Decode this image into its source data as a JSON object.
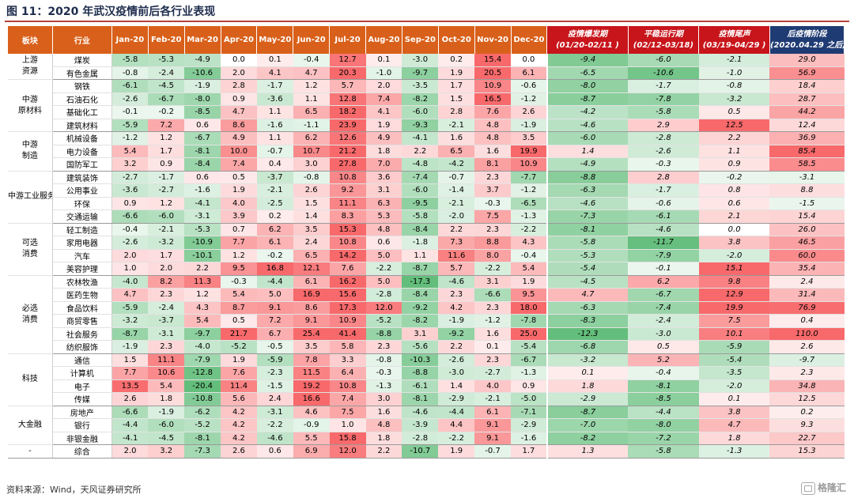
{
  "title": "图 11：2020 年武汉疫情前后各行业表现",
  "footer": "资料来源：Wind，天风证券研究所",
  "logo_text": "格隆汇",
  "colors": {
    "header": "#d9601a",
    "phase": "#c7151b",
    "phase_last": "#1f3b73",
    "neg": "#4caf50",
    "pos": "#e8484a"
  },
  "header": {
    "sector": "板块",
    "industry": "行业",
    "months": [
      "Jan-20",
      "Feb-20",
      "Mar-20",
      "Apr-20",
      "May-20",
      "Jun-20",
      "Jul-20",
      "Aug-20",
      "Sep-20",
      "Oct-20",
      "Nov-20",
      "Dec-20"
    ],
    "phases": [
      {
        "name": "疫情爆发期",
        "dates": "(01/20-02/11 )"
      },
      {
        "name": "平稳运行期",
        "dates": "(02/12-03/18)"
      },
      {
        "name": "疫情尾声",
        "dates": "(03/19-04/29 )"
      },
      {
        "name": "后疫情阶段",
        "dates": "(2020.04.29 之后)"
      }
    ]
  },
  "groups": [
    {
      "sector": "上游资源",
      "rows": [
        {
          "name": "煤炭",
          "values": [
            "-5.8",
            "-5.3",
            "-4.9",
            "0.0",
            "0.1",
            "-0.4",
            "12.7",
            "0.1",
            "-3.0",
            "0.2",
            "15.4",
            "0.0"
          ],
          "phases": [
            "-9.4",
            "-6.0",
            "-2.1",
            "29.0"
          ]
        },
        {
          "name": "有色金属",
          "values": [
            "-0.8",
            "-2.4",
            "-10.6",
            "2.0",
            "4.1",
            "4.7",
            "20.3",
            "-1.0",
            "-9.7",
            "1.9",
            "20.5",
            "6.1"
          ],
          "phases": [
            "-6.5",
            "-10.6",
            "-1.0",
            "56.9"
          ]
        }
      ]
    },
    {
      "sector": "中游原材料",
      "rows": [
        {
          "name": "钢铁",
          "values": [
            "-6.1",
            "-4.5",
            "-1.9",
            "2.8",
            "-1.7",
            "1.2",
            "5.7",
            "2.0",
            "-3.5",
            "1.7",
            "10.9",
            "-0.6"
          ],
          "phases": [
            "-8.0",
            "-1.7",
            "-0.8",
            "18.4"
          ]
        },
        {
          "name": "石油石化",
          "values": [
            "-2.6",
            "-6.7",
            "-8.0",
            "0.9",
            "-3.6",
            "1.1",
            "12.8",
            "7.4",
            "-8.2",
            "1.5",
            "16.5",
            "-1.2"
          ],
          "phases": [
            "-8.7",
            "-7.8",
            "-3.2",
            "28.7"
          ]
        },
        {
          "name": "基础化工",
          "values": [
            "-0.1",
            "-0.2",
            "-8.5",
            "4.7",
            "1.1",
            "6.5",
            "18.2",
            "4.1",
            "-6.0",
            "2.8",
            "7.6",
            "2.6"
          ],
          "phases": [
            "-4.2",
            "-5.8",
            "0.5",
            "44.2"
          ]
        },
        {
          "name": "建筑材料",
          "values": [
            "-5.9",
            "7.2",
            "0.6",
            "8.6",
            "-1.6",
            "-1.1",
            "23.9",
            "1.9",
            "-9.3",
            "-2.1",
            "4.8",
            "-1.9"
          ],
          "phases": [
            "-4.6",
            "2.9",
            "12.5",
            "12.4"
          ]
        }
      ]
    },
    {
      "sector": "中游制造",
      "rows": [
        {
          "name": "机械设备",
          "values": [
            "-1.2",
            "1.2",
            "-6.7",
            "4.9",
            "1.1",
            "6.2",
            "12.6",
            "4.9",
            "-4.1",
            "1.6",
            "4.8",
            "3.5"
          ],
          "phases": [
            "-6.0",
            "-2.8",
            "2.2",
            "36.9"
          ]
        },
        {
          "name": "电力设备",
          "values": [
            "5.4",
            "1.7",
            "-8.1",
            "10.0",
            "-0.7",
            "10.7",
            "21.2",
            "1.8",
            "2.2",
            "6.5",
            "1.6",
            "19.9"
          ],
          "phases": [
            "1.4",
            "-2.6",
            "1.1",
            "85.4"
          ]
        },
        {
          "name": "国防军工",
          "values": [
            "3.2",
            "0.9",
            "-8.4",
            "7.4",
            "0.4",
            "3.0",
            "27.8",
            "7.0",
            "-4.8",
            "-4.2",
            "8.1",
            "10.9"
          ],
          "phases": [
            "-4.9",
            "-0.3",
            "0.9",
            "58.5"
          ]
        }
      ]
    },
    {
      "sector": "中游工业服务",
      "rows": [
        {
          "name": "建筑装饰",
          "values": [
            "-2.7",
            "-1.7",
            "0.6",
            "0.5",
            "-3.7",
            "-0.8",
            "10.8",
            "3.6",
            "-7.4",
            "-0.7",
            "2.3",
            "-7.7"
          ],
          "phases": [
            "-8.8",
            "2.8",
            "-0.2",
            "-3.1"
          ]
        },
        {
          "name": "公用事业",
          "values": [
            "-3.6",
            "-2.7",
            "-1.6",
            "1.9",
            "-2.1",
            "2.6",
            "9.2",
            "3.1",
            "-6.0",
            "-1.4",
            "3.7",
            "-1.2"
          ],
          "phases": [
            "-6.3",
            "-1.7",
            "0.8",
            "8.8"
          ]
        },
        {
          "name": "环保",
          "values": [
            "0.9",
            "1.2",
            "-4.1",
            "4.0",
            "-2.5",
            "1.5",
            "11.1",
            "6.3",
            "-9.5",
            "-2.1",
            "-0.3",
            "-6.5"
          ],
          "phases": [
            "-4.6",
            "-0.6",
            "0.6",
            "-1.5"
          ]
        },
        {
          "name": "交通运输",
          "values": [
            "-6.6",
            "-6.0",
            "-3.1",
            "3.9",
            "0.2",
            "1.4",
            "8.3",
            "5.3",
            "-5.8",
            "-2.0",
            "7.5",
            "-1.3"
          ],
          "phases": [
            "-7.3",
            "-6.1",
            "2.1",
            "15.4"
          ]
        }
      ]
    },
    {
      "sector": "可选消费",
      "rows": [
        {
          "name": "轻工制造",
          "values": [
            "-0.4",
            "-2.1",
            "-5.3",
            "0.7",
            "6.2",
            "3.5",
            "15.3",
            "4.8",
            "-8.4",
            "2.2",
            "2.3",
            "-2.2"
          ],
          "phases": [
            "-8.1",
            "-4.6",
            "0.0",
            "26.0"
          ]
        },
        {
          "name": "家用电器",
          "values": [
            "-2.6",
            "-3.2",
            "-10.9",
            "7.7",
            "6.1",
            "2.4",
            "10.8",
            "0.6",
            "-1.8",
            "7.3",
            "8.8",
            "4.3"
          ],
          "phases": [
            "-5.8",
            "-11.7",
            "3.8",
            "46.5"
          ]
        },
        {
          "name": "汽车",
          "values": [
            "2.0",
            "1.7",
            "-10.1",
            "1.2",
            "-0.2",
            "6.5",
            "14.2",
            "5.0",
            "1.1",
            "11.6",
            "8.0",
            "-0.4"
          ],
          "phases": [
            "-5.3",
            "-7.9",
            "-2.0",
            "60.0"
          ]
        },
        {
          "name": "美容护理",
          "values": [
            "1.0",
            "2.0",
            "2.2",
            "9.5",
            "16.8",
            "12.1",
            "7.6",
            "-2.2",
            "-8.7",
            "5.7",
            "-2.2",
            "5.4"
          ],
          "phases": [
            "-5.4",
            "-0.1",
            "15.1",
            "35.4"
          ]
        }
      ]
    },
    {
      "sector": "必选消费",
      "rows": [
        {
          "name": "农林牧渔",
          "values": [
            "-4.0",
            "8.2",
            "11.3",
            "-0.3",
            "-4.4",
            "6.1",
            "16.2",
            "5.0",
            "-17.3",
            "-4.6",
            "3.1",
            "1.9"
          ],
          "phases": [
            "-4.5",
            "6.2",
            "9.8",
            "2.4"
          ]
        },
        {
          "name": "医药生物",
          "values": [
            "4.7",
            "2.3",
            "1.2",
            "5.4",
            "5.0",
            "16.9",
            "15.6",
            "-2.8",
            "-8.4",
            "2.3",
            "-6.6",
            "9.5"
          ],
          "phases": [
            "4.7",
            "-6.7",
            "12.9",
            "31.4"
          ]
        },
        {
          "name": "食品饮料",
          "values": [
            "-5.9",
            "-2.4",
            "4.3",
            "8.7",
            "9.1",
            "8.6",
            "17.3",
            "12.0",
            "-9.2",
            "4.2",
            "2.3",
            "18.0"
          ],
          "phases": [
            "-6.3",
            "-7.4",
            "19.9",
            "76.9"
          ]
        },
        {
          "name": "商贸零售",
          "values": [
            "-3.2",
            "-3.7",
            "5.4",
            "0.5",
            "7.2",
            "9.1",
            "10.9",
            "-5.2",
            "-8.2",
            "-1.9",
            "-1.2",
            "-7.8"
          ],
          "phases": [
            "-8.3",
            "-2.4",
            "7.5",
            "0.4"
          ]
        },
        {
          "name": "社会服务",
          "values": [
            "-8.7",
            "-3.1",
            "-9.7",
            "21.7",
            "6.7",
            "25.4",
            "41.4",
            "-8.8",
            "3.1",
            "-9.2",
            "1.6",
            "25.0"
          ],
          "phases": [
            "-12.3",
            "-3.0",
            "10.1",
            "110.0"
          ]
        },
        {
          "name": "纺织服饰",
          "values": [
            "-1.9",
            "2.3",
            "-4.0",
            "-5.2",
            "-0.5",
            "3.5",
            "5.8",
            "2.3",
            "-5.6",
            "2.2",
            "0.1",
            "-5.4"
          ],
          "phases": [
            "-6.8",
            "0.5",
            "-5.9",
            "2.6"
          ]
        }
      ]
    },
    {
      "sector": "科技",
      "rows": [
        {
          "name": "通信",
          "values": [
            "1.5",
            "11.1",
            "-7.9",
            "1.9",
            "-5.9",
            "7.8",
            "3.3",
            "-0.8",
            "-10.3",
            "-2.6",
            "2.3",
            "-6.7"
          ],
          "phases": [
            "-3.2",
            "5.2",
            "-5.4",
            "-9.7"
          ]
        },
        {
          "name": "计算机",
          "values": [
            "7.7",
            "10.6",
            "-12.8",
            "7.6",
            "-2.3",
            "11.5",
            "6.4",
            "-0.3",
            "-8.8",
            "-3.0",
            "-2.7",
            "-1.3"
          ],
          "phases": [
            "0.1",
            "-0.4",
            "-3.5",
            "2.3"
          ]
        },
        {
          "name": "电子",
          "values": [
            "13.5",
            "5.4",
            "-20.4",
            "11.4",
            "-1.5",
            "19.2",
            "10.8",
            "-1.3",
            "-6.1",
            "1.4",
            "4.0",
            "0.9"
          ],
          "phases": [
            "1.8",
            "-8.1",
            "-2.0",
            "34.8"
          ]
        },
        {
          "name": "传媒",
          "values": [
            "2.6",
            "1.8",
            "-10.8",
            "5.6",
            "2.4",
            "16.6",
            "7.4",
            "3.0",
            "-8.1",
            "-2.9",
            "-2.1",
            "-5.0"
          ],
          "phases": [
            "-2.9",
            "-8.5",
            "0.1",
            "12.5"
          ]
        }
      ]
    },
    {
      "sector": "大金融",
      "rows": [
        {
          "name": "房地产",
          "values": [
            "-6.6",
            "-1.9",
            "-6.2",
            "4.2",
            "-3.1",
            "4.6",
            "7.5",
            "1.6",
            "-4.6",
            "-4.4",
            "6.1",
            "-7.1"
          ],
          "phases": [
            "-8.7",
            "-4.4",
            "3.8",
            "0.2"
          ]
        },
        {
          "name": "银行",
          "values": [
            "-4.4",
            "-6.0",
            "-5.2",
            "4.2",
            "-2.2",
            "-0.9",
            "1.0",
            "4.8",
            "-3.9",
            "4.4",
            "9.1",
            "-2.9"
          ],
          "phases": [
            "-7.0",
            "-8.0",
            "4.7",
            "9.3"
          ]
        },
        {
          "name": "非银金融",
          "values": [
            "-4.1",
            "-4.5",
            "-8.1",
            "4.2",
            "-4.6",
            "5.5",
            "15.8",
            "1.8",
            "-2.8",
            "-2.2",
            "9.1",
            "-1.6"
          ],
          "phases": [
            "-8.2",
            "-7.2",
            "1.8",
            "22.7"
          ]
        }
      ]
    },
    {
      "sector": "-",
      "rows": [
        {
          "name": "综合",
          "values": [
            "2.0",
            "3.2",
            "-7.3",
            "2.6",
            "0.6",
            "6.9",
            "12.0",
            "2.2",
            "-10.7",
            "1.9",
            "-0.7",
            "1.7"
          ],
          "phases": [
            "1.3",
            "-5.8",
            "-1.3",
            "15.3"
          ]
        }
      ]
    }
  ]
}
